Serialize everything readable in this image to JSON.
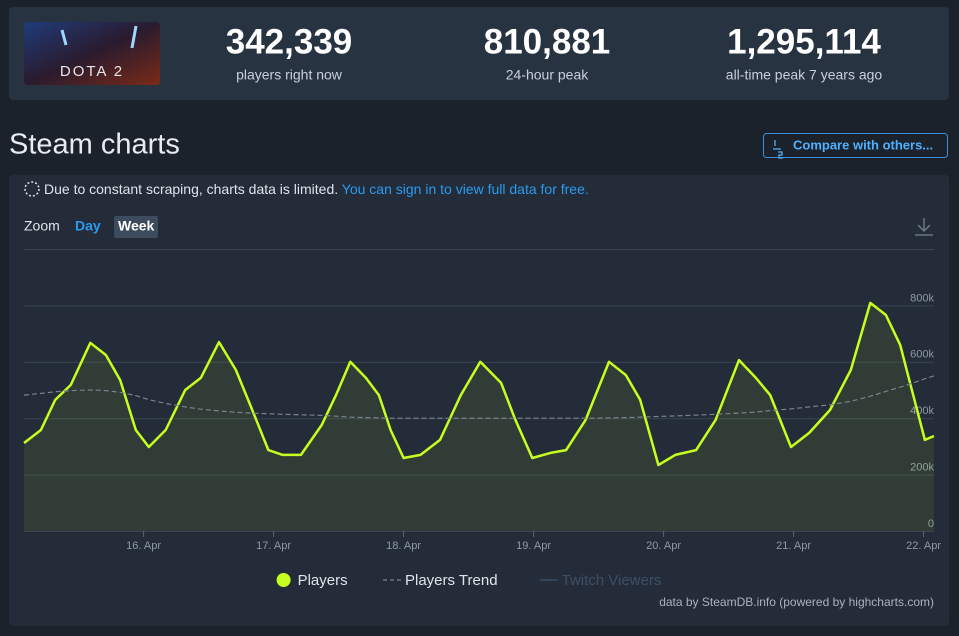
{
  "header": {
    "game": "DOTA 2",
    "stats": [
      {
        "value": "342,339",
        "label": "players right now"
      },
      {
        "value": "810,881",
        "label": "24-hour peak"
      },
      {
        "value": "1,295,114",
        "label": "all-time peak 7 years ago"
      }
    ]
  },
  "section_title": "Steam charts",
  "compare_button": "Compare with others...",
  "notice": {
    "text": "Due to constant scraping, charts data is limited.",
    "link": "You can sign in to view full data for free."
  },
  "zoom": {
    "label": "Zoom",
    "options": [
      "Day",
      "Week"
    ],
    "active": "Week"
  },
  "credit": "data by SteamDB.info (powered by highcharts.com)",
  "chart_data": {
    "type": "line",
    "x": [
      15.08,
      15.21,
      15.32,
      15.44,
      15.59,
      15.71,
      15.82,
      15.94,
      16.04,
      16.17,
      16.32,
      16.44,
      16.58,
      16.71,
      16.82,
      16.96,
      17.07,
      17.21,
      17.37,
      17.48,
      17.59,
      17.71,
      17.81,
      17.9,
      18.0,
      18.13,
      18.28,
      18.44,
      18.59,
      18.75,
      18.86,
      18.99,
      19.13,
      19.25,
      19.4,
      19.58,
      19.71,
      19.82,
      19.96,
      20.09,
      20.25,
      20.4,
      20.58,
      20.71,
      20.82,
      20.98,
      21.12,
      21.28,
      21.44,
      21.59,
      21.71,
      21.82,
      21.92,
      22.01,
      22.08
    ],
    "series": [
      {
        "name": "Players",
        "color": "#c6ff1f",
        "values": [
          312000,
          358000,
          465000,
          518000,
          667000,
          624000,
          535000,
          358000,
          298000,
          358000,
          500000,
          543000,
          670000,
          571000,
          447000,
          287000,
          270000,
          270000,
          376000,
          482000,
          600000,
          543000,
          482000,
          358000,
          259000,
          270000,
          323000,
          482000,
          600000,
          525000,
          394000,
          259000,
          277000,
          287000,
          394000,
          600000,
          553000,
          465000,
          234000,
          270000,
          287000,
          394000,
          606000,
          543000,
          482000,
          298000,
          348000,
          429000,
          571000,
          809000,
          766000,
          660000,
          482000,
          323000,
          337000
        ]
      },
      {
        "name": "Players Trend",
        "color": "#7a828c",
        "dashed": true,
        "values": [
          482000,
          488000,
          494000,
          498000,
          500000,
          498000,
          492000,
          480000,
          466000,
          452000,
          440000,
          432000,
          426000,
          421000,
          418000,
          416000,
          414000,
          412000,
          410000,
          407000,
          404000,
          402000,
          401000,
          400000,
          400000,
          400000,
          400000,
          400000,
          400000,
          400000,
          400000,
          400000,
          400000,
          400000,
          400000,
          401000,
          402000,
          404000,
          406000,
          408000,
          411000,
          414000,
          418000,
          422000,
          427000,
          433000,
          440000,
          447000,
          460000,
          478000,
          495000,
          510000,
          525000,
          540000,
          550000
        ]
      },
      {
        "name": "Twitch Viewers",
        "color": "#3d4f66",
        "visible": false,
        "values": [
          null,
          null,
          null,
          null,
          null,
          null,
          null,
          null,
          null,
          null,
          null,
          null,
          null,
          null,
          null,
          null,
          null,
          null,
          null,
          null,
          null,
          null,
          null,
          null,
          null,
          null,
          null,
          null,
          null,
          null,
          null,
          null,
          null,
          null,
          null,
          null,
          null,
          null,
          null,
          null,
          null,
          null,
          null,
          null,
          null,
          null,
          null,
          null,
          null,
          null,
          null,
          null,
          null,
          null,
          null
        ]
      }
    ],
    "xlim": [
      15.08,
      22.08
    ],
    "xticks": [
      {
        "value": 16,
        "label": "16. Apr"
      },
      {
        "value": 17,
        "label": "17. Apr"
      },
      {
        "value": 18,
        "label": "18. Apr"
      },
      {
        "value": 19,
        "label": "19. Apr"
      },
      {
        "value": 20,
        "label": "20. Apr"
      },
      {
        "value": 21,
        "label": "21. Apr"
      },
      {
        "value": 22,
        "label": "22. Apr"
      }
    ],
    "ylim": [
      0,
      1000000
    ],
    "yticks": [
      {
        "value": 0,
        "label": "0"
      },
      {
        "value": 200000,
        "label": "200k"
      },
      {
        "value": 400000,
        "label": "400k"
      },
      {
        "value": 600000,
        "label": "600k"
      },
      {
        "value": 800000,
        "label": "800k"
      }
    ],
    "grid": true
  }
}
